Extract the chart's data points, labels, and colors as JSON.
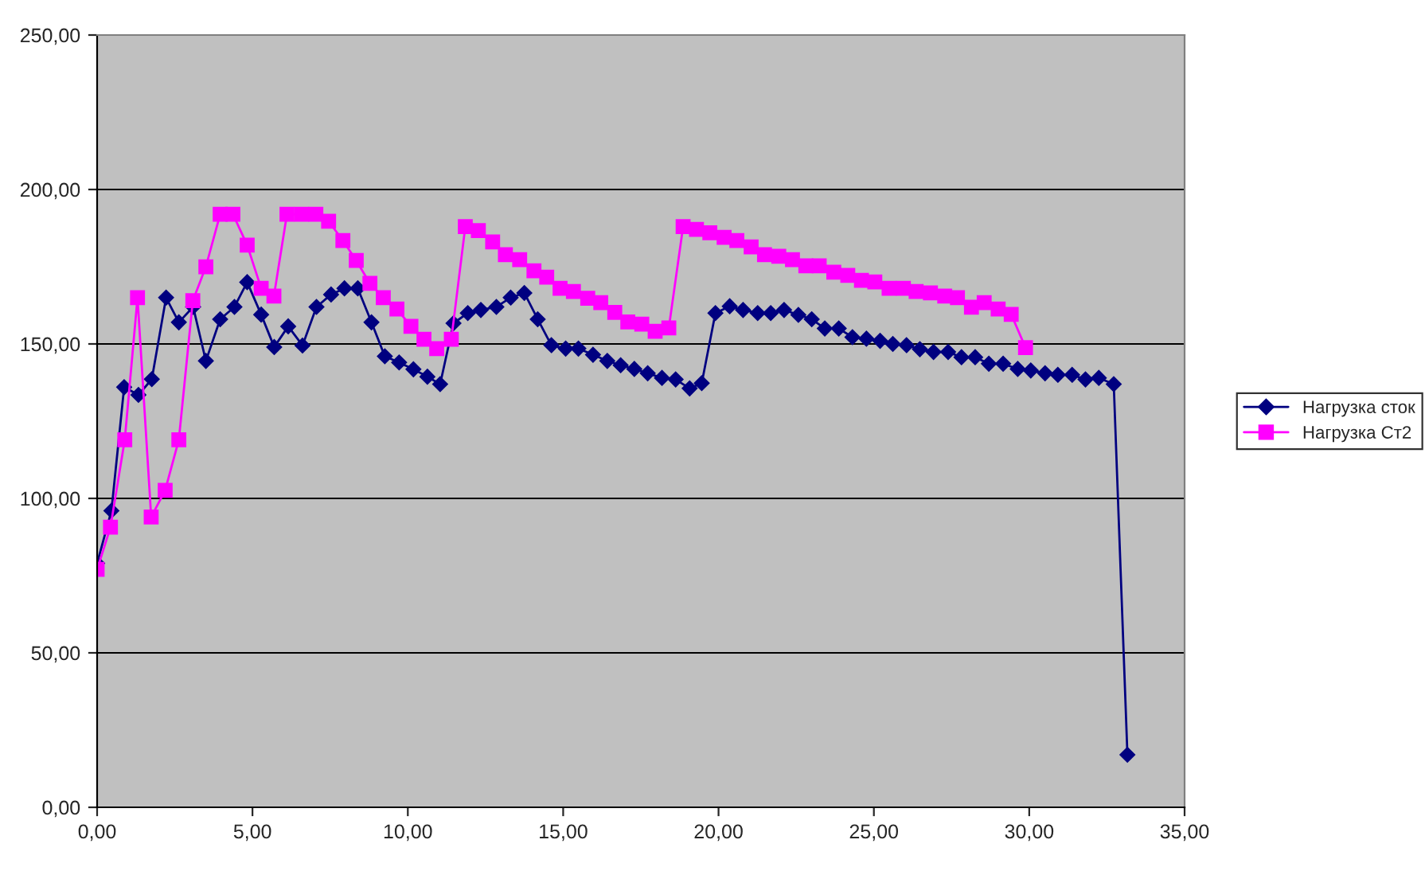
{
  "chart_data": {
    "type": "line",
    "xlim": [
      0,
      35
    ],
    "ylim": [
      0,
      250
    ],
    "xticks": [
      {
        "value": 0,
        "label": "0,00"
      },
      {
        "value": 5,
        "label": "5,00"
      },
      {
        "value": 10,
        "label": "10,00"
      },
      {
        "value": 15,
        "label": "15,00"
      },
      {
        "value": 20,
        "label": "20,00"
      },
      {
        "value": 25,
        "label": "25,00"
      },
      {
        "value": 30,
        "label": "30,00"
      },
      {
        "value": 35,
        "label": "35,00"
      }
    ],
    "yticks": [
      {
        "value": 0,
        "label": "0,00"
      },
      {
        "value": 50,
        "label": "50,00"
      },
      {
        "value": 100,
        "label": "100,00"
      },
      {
        "value": 150,
        "label": "150,00"
      },
      {
        "value": 200,
        "label": "200,00"
      },
      {
        "value": 250,
        "label": "250,00"
      }
    ],
    "grid": "y",
    "legend": "right",
    "line_style": "solid",
    "series": [
      {
        "name": "Нагрузка сток",
        "color": "#000080",
        "marker": "diamond",
        "x": [
          0,
          0.46,
          0.87,
          1.33,
          1.76,
          2.22,
          2.63,
          3.09,
          3.5,
          3.96,
          4.42,
          4.83,
          5.28,
          5.7,
          6.15,
          6.61,
          7.06,
          7.53,
          7.96,
          8.39,
          8.83,
          9.26,
          9.72,
          10.18,
          10.63,
          11.04,
          11.47,
          11.93,
          12.35,
          12.85,
          13.31,
          13.75,
          14.18,
          14.62,
          15.08,
          15.49,
          15.96,
          16.42,
          16.85,
          17.29,
          17.72,
          18.18,
          18.62,
          19.07,
          19.46,
          19.9,
          20.36,
          20.79,
          21.26,
          21.68,
          22.11,
          22.57,
          23.0,
          23.42,
          23.87,
          24.31,
          24.76,
          25.2,
          25.61,
          26.05,
          26.48,
          26.92,
          27.39,
          27.82,
          28.26,
          28.7,
          29.16,
          29.63,
          30.05,
          30.51,
          30.92,
          31.38,
          31.81,
          32.24,
          32.72,
          33.16
        ],
        "values": [
          79,
          96,
          136,
          133.5,
          138.6,
          165,
          157,
          162,
          144.5,
          158,
          162,
          170,
          159.5,
          149,
          155.7,
          149.5,
          162,
          166,
          168,
          168,
          157,
          146,
          144,
          141.8,
          139.4,
          137,
          156.7,
          160,
          161,
          162,
          165,
          166.5,
          158,
          149.6,
          148.5,
          148.5,
          146.5,
          144.5,
          143.1,
          141.9,
          140.5,
          139,
          138.5,
          135.6,
          137.3,
          160,
          162.2,
          161,
          160,
          160,
          161,
          159.4,
          158,
          155,
          155,
          152.2,
          151.7,
          151,
          150,
          149.6,
          148.3,
          147.4,
          147.4,
          145.7,
          145.7,
          143.6,
          143.6,
          141.9,
          141.4,
          140.5,
          140,
          140,
          138.5,
          139,
          137,
          17
        ]
      },
      {
        "name": "Нагрузка Ст2",
        "color": "#ff00ff",
        "marker": "square",
        "x": [
          0,
          0.43,
          0.89,
          1.3,
          1.74,
          2.19,
          2.63,
          3.08,
          3.5,
          3.96,
          4.37,
          4.83,
          5.28,
          5.69,
          6.11,
          6.58,
          7.04,
          7.45,
          7.91,
          8.34,
          8.78,
          9.21,
          9.65,
          10.1,
          10.52,
          10.93,
          11.4,
          11.85,
          12.27,
          12.73,
          13.14,
          13.6,
          14.06,
          14.47,
          14.9,
          15.33,
          15.79,
          16.21,
          16.66,
          17.08,
          17.53,
          17.96,
          18.4,
          18.86,
          19.29,
          19.72,
          20.18,
          20.59,
          21.05,
          21.48,
          21.94,
          22.38,
          22.81,
          23.24,
          23.71,
          24.16,
          24.6,
          25.03,
          25.49,
          25.95,
          26.36,
          26.82,
          27.28,
          27.69,
          28.14,
          28.55,
          29.0,
          29.42,
          29.88
        ],
        "values": [
          77,
          90.7,
          119,
          165,
          94,
          102.6,
          119,
          164,
          175,
          192,
          192,
          182,
          168,
          165.5,
          192,
          192,
          192,
          189.7,
          183.5,
          177,
          169.6,
          165,
          161.3,
          155.7,
          151.5,
          148.5,
          151.5,
          188,
          186.7,
          183,
          178.9,
          177.3,
          173.7,
          171.6,
          168,
          167,
          164.8,
          163.4,
          160.2,
          157.1,
          156.4,
          154.1,
          155.2,
          188,
          187.1,
          186,
          184.5,
          183.5,
          181.4,
          178.9,
          178.4,
          177.3,
          175.3,
          175.3,
          173.2,
          172.2,
          170.6,
          170.1,
          168,
          168,
          167,
          166.5,
          165.5,
          165,
          161.9,
          163.4,
          161.3,
          159.6,
          148.8
        ]
      }
    ]
  }
}
